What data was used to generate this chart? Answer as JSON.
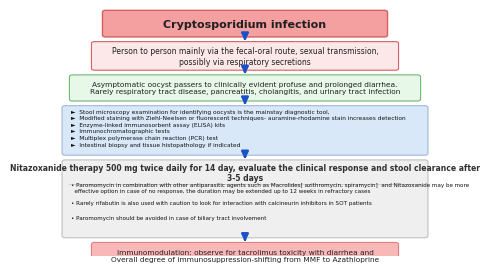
{
  "title": "Cryptosporidium infection",
  "title_bg": "#f4a0a0",
  "title_border": "#d46060",
  "box2_text": "Person to person mainly via the fecal-oral route, sexual transmission,\npossibly via respiratory secretions",
  "box2_bg": "#fce8e8",
  "box2_border": "#d46060",
  "box3_text": "Asymptomatic oocyst passers to clinically evident profuse and prolonged diarrhea.\nRarely respiratory tract disease, pancreatitis, cholangitis, and urinary tract infection",
  "box3_bg": "#e8f8e8",
  "box3_border": "#70b870",
  "box4_bullets": [
    "Stool microscopy examination for identifying oocysts is the mainstay diagnostic tool,",
    "Modified staining with Ziehl-Neelsen or fluorescent techniques- auramine-rhodamine stain increases detection",
    "Enzyme-linked immunosorbent assay (ELISA) kits",
    "Immunochromatographic tests",
    "Multiplex polymerase chain reaction (PCR) test",
    "Intestinal biopsy and tissue histopathology if indicated"
  ],
  "box4_bg": "#d8e8f8",
  "box4_border": "#a0b8d8",
  "box5_title": "Nitazoxanide therapy 500 mg twice daily for 14 day, evaluate the clinical response and stool clearance after\n3-5 days",
  "box5_bullets": [
    "Paromomycin in combination with other antiparasitic agents such as Macrolides[ azithromycin, spiramycin]  and Nitazoxanide may be more\n  effective option in case of no response, the duration may be extended up to 12 weeks in refractory cases",
    "Rarely rifabutin is also used with caution to look for interaction with calcineurin inhibitors in SOT patients",
    "Paromomycin should be avoided in case of biliary tract involvement"
  ],
  "box5_bg": "#efefef",
  "box5_border": "#c0c0c0",
  "box5_title_color": "#303030",
  "box6_text": "Immunomodulation: observe for tacrolimus toxicity with diarrhea and\nOverall degree of immunosuppression-shifting from MMF to Azathioprine",
  "box6_bg": "#f8b8b8",
  "box6_border": "#e08080",
  "arrow_color": "#1a50c8",
  "bullet_arrow": "►",
  "bullet_dot": "•",
  "bg_color": "#ffffff"
}
